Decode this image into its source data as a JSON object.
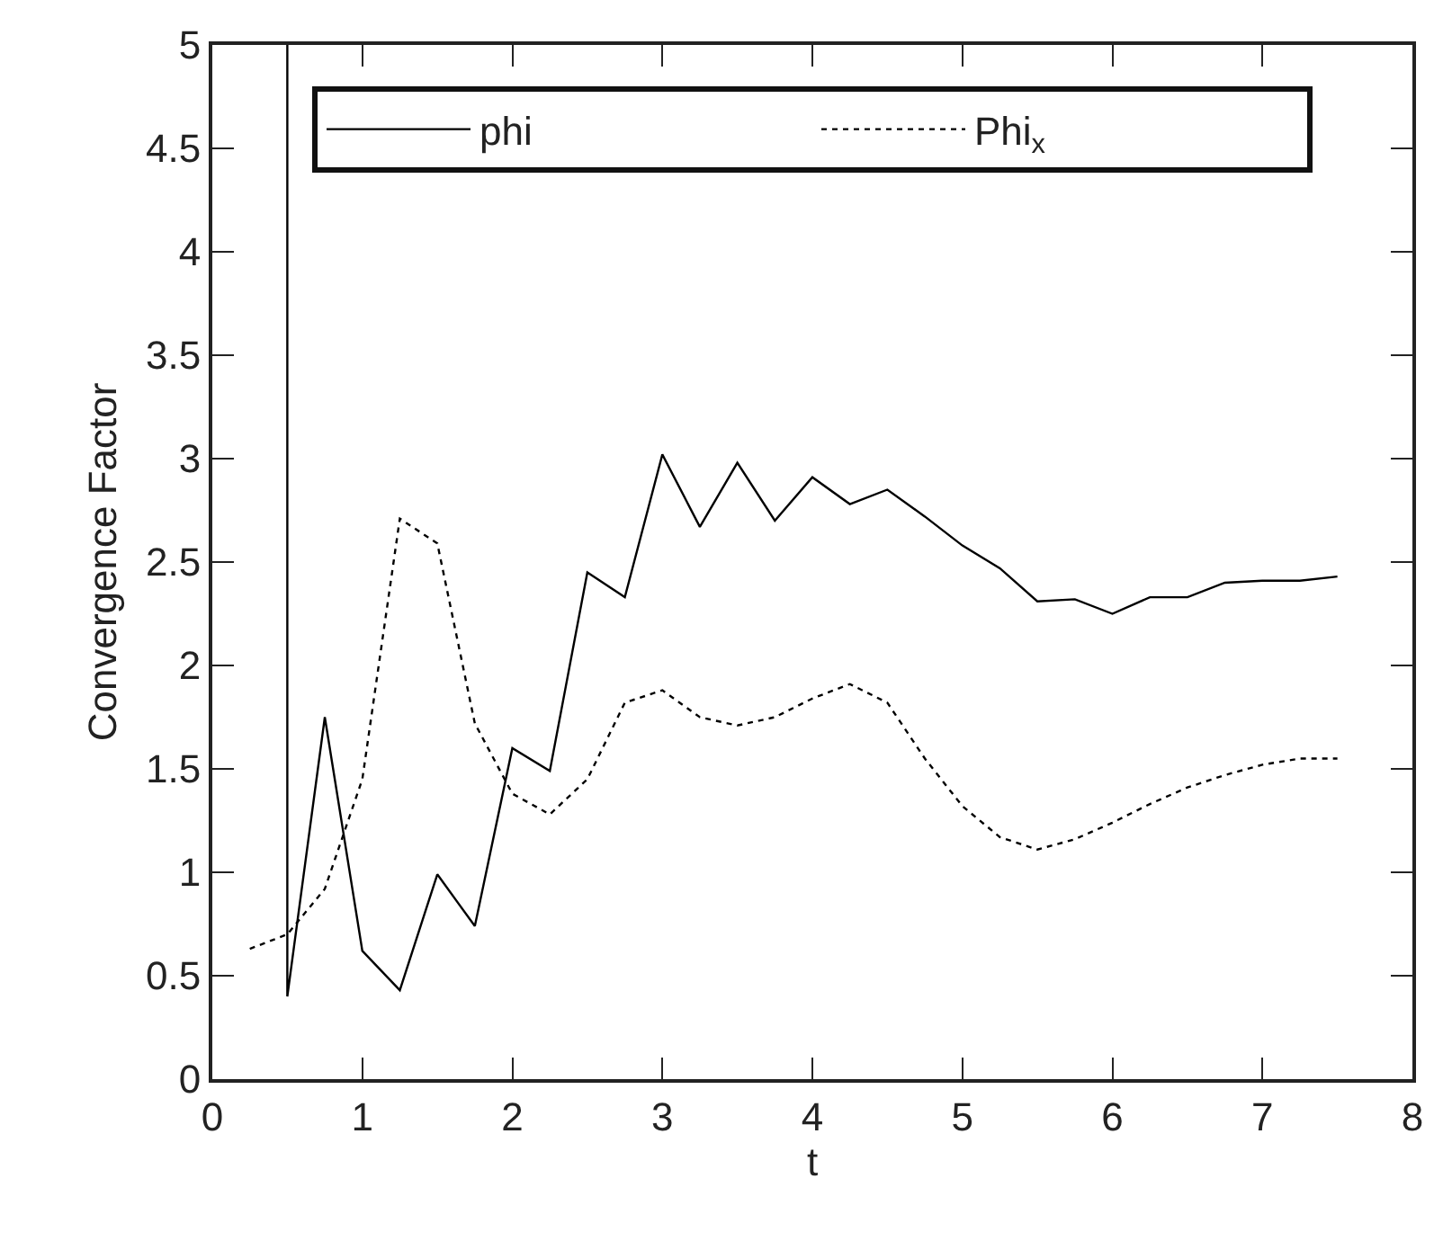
{
  "chart_data": {
    "type": "line",
    "xlabel": "t",
    "ylabel": "Convergence Factor",
    "xlim": [
      0,
      8
    ],
    "ylim": [
      0,
      5
    ],
    "xticks": [
      0,
      1,
      2,
      3,
      4,
      5,
      6,
      7,
      8
    ],
    "yticks": [
      0,
      0.5,
      1,
      1.5,
      2,
      2.5,
      3,
      3.5,
      4,
      4.5,
      5
    ],
    "grid": false,
    "legend": "top",
    "marker": "none",
    "series": [
      {
        "name": "phi",
        "color": "#000000",
        "line_style": "solid",
        "x": [
          0.5,
          0.5,
          0.75,
          1,
          1.25,
          1.5,
          1.75,
          2,
          2.25,
          2.5,
          2.75,
          3,
          3.25,
          3.5,
          3.75,
          4,
          4.25,
          4.5,
          4.75,
          5,
          5.25,
          5.5,
          5.75,
          6,
          6.25,
          6.5,
          6.75,
          7,
          7.25,
          7.5
        ],
        "values": [
          5,
          0.4,
          1.75,
          0.62,
          0.43,
          0.99,
          0.74,
          1.6,
          1.49,
          2.45,
          2.33,
          3.02,
          2.67,
          2.98,
          2.7,
          2.91,
          2.78,
          2.85,
          2.72,
          2.58,
          2.47,
          2.31,
          2.32,
          2.25,
          2.33,
          2.33,
          2.4,
          2.41,
          2.41,
          2.43
        ]
      },
      {
        "name": "Phi$_{x}$",
        "color": "#000000",
        "line_style": "dotted",
        "x": [
          0.25,
          0.5,
          0.75,
          1,
          1.25,
          1.5,
          1.75,
          2,
          2.25,
          2.5,
          2.75,
          3,
          3.25,
          3.5,
          3.75,
          4,
          4.25,
          4.5,
          4.75,
          5,
          5.25,
          5.5,
          5.75,
          6,
          6.25,
          6.5,
          6.75,
          7,
          7.25,
          7.5
        ],
        "values": [
          0.63,
          0.7,
          0.92,
          1.45,
          2.71,
          2.59,
          1.72,
          1.38,
          1.28,
          1.45,
          1.82,
          1.88,
          1.75,
          1.71,
          1.75,
          1.84,
          1.91,
          1.82,
          1.55,
          1.32,
          1.17,
          1.11,
          1.16,
          1.24,
          1.33,
          1.41,
          1.47,
          1.52,
          1.55,
          1.55
        ]
      }
    ]
  }
}
